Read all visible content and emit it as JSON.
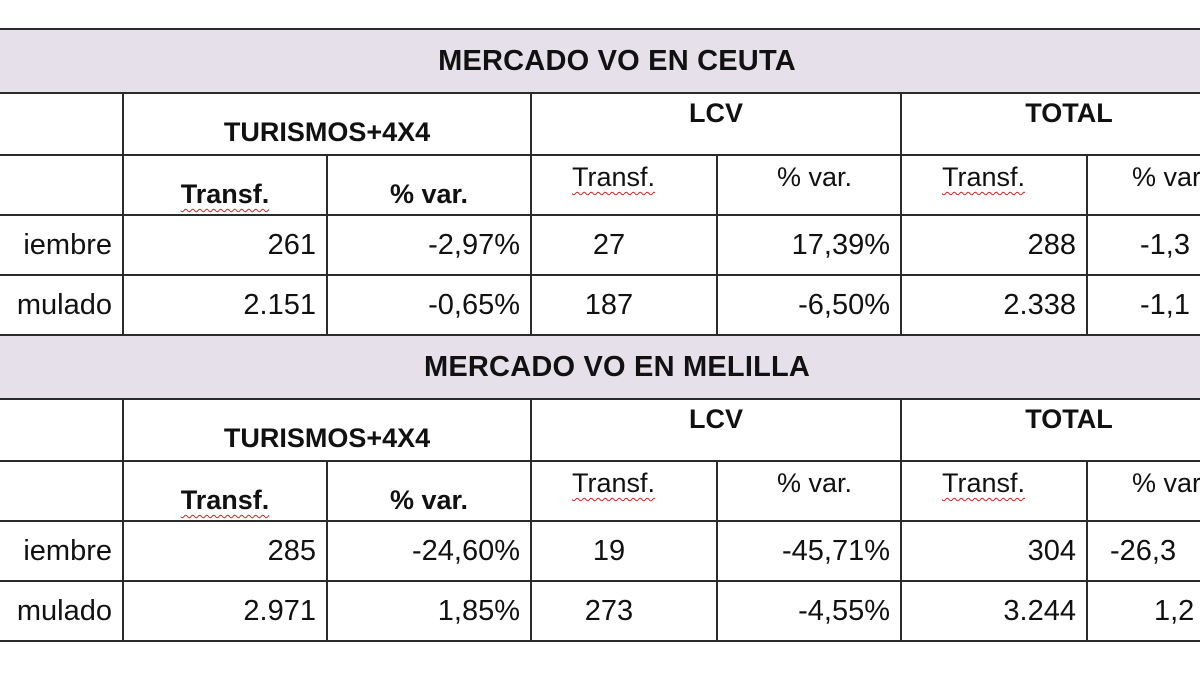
{
  "tables": [
    {
      "title": "MERCADO VO EN CEUTA",
      "groups": {
        "turismos": "TURISMOS+4X4",
        "lcv": "LCV",
        "total": "TOTAL"
      },
      "subheaders": {
        "turismos_transf": "Transf.",
        "turismos_var": "% var.",
        "lcv_transf": "Transf.",
        "lcv_var": "% var.",
        "total_transf": "Transf.",
        "total_var": "% var"
      },
      "rows": [
        {
          "label": "iembre",
          "turismos_transf": "261",
          "turismos_var": "-2,97%",
          "lcv_transf": "27",
          "lcv_var": "17,39%",
          "total_transf": "288",
          "total_var": "-1,3"
        },
        {
          "label": "mulado",
          "turismos_transf": "2.151",
          "turismos_var": "-0,65%",
          "lcv_transf": "187",
          "lcv_var": "-6,50%",
          "total_transf": "2.338",
          "total_var": "-1,1"
        }
      ]
    },
    {
      "title": "MERCADO VO EN MELILLA",
      "groups": {
        "turismos": "TURISMOS+4X4",
        "lcv": "LCV",
        "total": "TOTAL"
      },
      "subheaders": {
        "turismos_transf": "Transf.",
        "turismos_var": "% var.",
        "lcv_transf": "Transf.",
        "lcv_var": "% var.",
        "total_transf": "Transf.",
        "total_var": "% var"
      },
      "rows": [
        {
          "label": "iembre",
          "turismos_transf": "285",
          "turismos_var": "-24,60%",
          "lcv_transf": "19",
          "lcv_var": "-45,71%",
          "total_transf": "304",
          "total_var": "-26,3"
        },
        {
          "label": "mulado",
          "turismos_transf": "2.971",
          "turismos_var": "1,85%",
          "lcv_transf": "273",
          "lcv_var": "-4,55%",
          "total_transf": "3.244",
          "total_var": "1,2"
        }
      ]
    }
  ],
  "colors": {
    "title_band": "#e6e0ea",
    "grid_line": "#2b2b2b",
    "spellcheck_underline": "#d22020"
  }
}
